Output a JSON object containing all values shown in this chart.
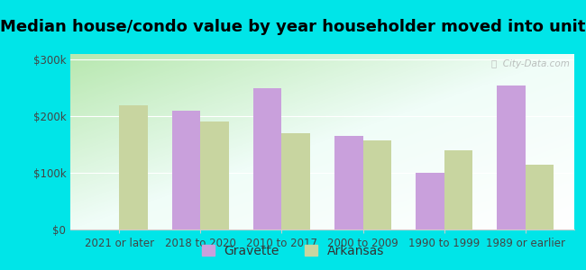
{
  "title": "Median house/condo value by year householder moved into unit",
  "categories": [
    "2021 or later",
    "2018 to 2020",
    "2010 to 2017",
    "2000 to 2009",
    "1990 to 1999",
    "1989 or earlier"
  ],
  "gravette": [
    null,
    210000,
    250000,
    165000,
    100000,
    255000
  ],
  "arkansas": [
    220000,
    190000,
    170000,
    157000,
    140000,
    115000
  ],
  "gravette_color": "#c9a0dc",
  "arkansas_color": "#c8d5a0",
  "background_outer": "#00e5e8",
  "ylim": [
    0,
    310000
  ],
  "yticks": [
    0,
    100000,
    200000,
    300000
  ],
  "ytick_labels": [
    "$0",
    "$100k",
    "$200k",
    "$300k"
  ],
  "bar_width": 0.35,
  "legend_gravette": "Gravette",
  "legend_arkansas": "Arkansas",
  "title_fontsize": 13,
  "axis_fontsize": 8.5,
  "legend_fontsize": 10,
  "watermark_text": "ⓘ  City-Data.com"
}
